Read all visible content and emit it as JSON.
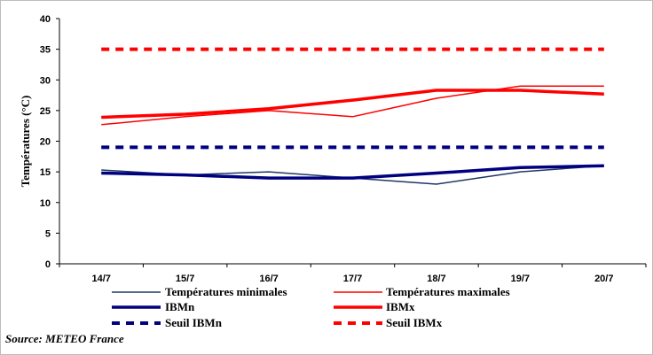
{
  "chart_data": {
    "type": "line",
    "categories": [
      "14/7",
      "15/7",
      "16/7",
      "17/7",
      "18/7",
      "19/7",
      "20/7"
    ],
    "ylabel": "Températures  (°C)",
    "xlabel": "",
    "ylim": [
      0,
      40
    ],
    "yticks": [
      0,
      5,
      10,
      15,
      20,
      25,
      30,
      35,
      40
    ],
    "grid": false,
    "legend_position": "bottom",
    "series": [
      {
        "name": "Températures minimales",
        "values": [
          15.3,
          14.5,
          15.0,
          14.0,
          13.0,
          15.0,
          16.0
        ],
        "color": "#1f3864",
        "style": "thin"
      },
      {
        "name": "Températures maximales",
        "values": [
          22.7,
          24.0,
          25.0,
          24.0,
          27.0,
          29.0,
          29.0
        ],
        "color": "#ff0000",
        "style": "thin"
      },
      {
        "name": "IBMn",
        "values": [
          14.8,
          14.5,
          14.0,
          14.0,
          14.8,
          15.7,
          16.0
        ],
        "color": "#000080",
        "style": "thick"
      },
      {
        "name": "IBMx",
        "values": [
          23.9,
          24.4,
          25.3,
          26.7,
          28.3,
          28.3,
          27.7
        ],
        "color": "#ff0000",
        "style": "thick"
      },
      {
        "name": "Seuil IBMn",
        "values": [
          19,
          19,
          19,
          19,
          19,
          19,
          19
        ],
        "color": "#000080",
        "style": "dashed"
      },
      {
        "name": "Seuil IBMx",
        "values": [
          35,
          35,
          35,
          35,
          35,
          35,
          35
        ],
        "color": "#ff0000",
        "style": "dashed"
      }
    ]
  },
  "source": "Source: METEO France"
}
